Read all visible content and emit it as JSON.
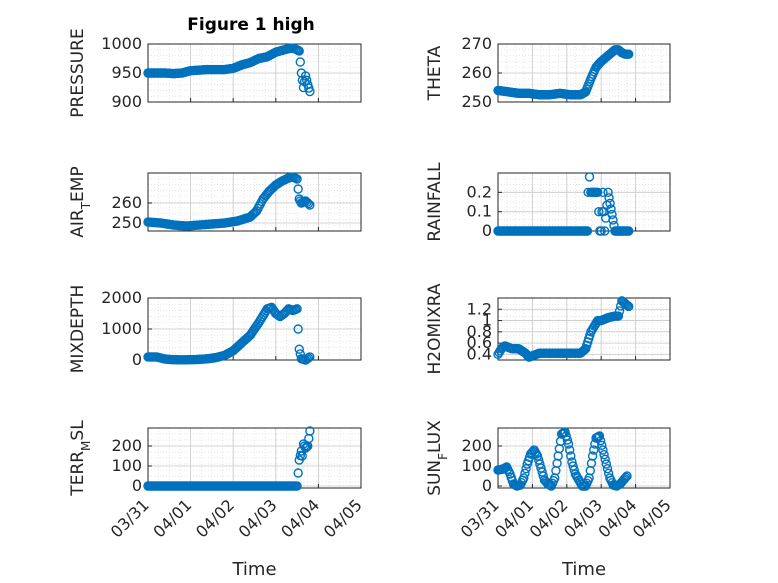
{
  "figure": {
    "title": "Figure 1 high",
    "marker_color": "#0072BD",
    "grid": "on, major and minor dotted"
  },
  "chart_data": [
    {
      "type": "scatter",
      "id": "pressure",
      "title": "Figure 1 high",
      "ylabel": "PRESSURE",
      "xlim": [
        "03/31",
        "04/05"
      ],
      "ylim": [
        900,
        1000
      ],
      "yticks": [
        "900",
        "950",
        "1000"
      ],
      "xticks": [
        "03/31",
        "04/01",
        "04/02",
        "04/03",
        "04/04",
        "04/05"
      ],
      "xlabel": "",
      "x_days": [
        0,
        0.2,
        0.4,
        0.6,
        0.8,
        1.0,
        1.2,
        1.4,
        1.6,
        1.8,
        2.0,
        2.2,
        2.4,
        2.6,
        2.8,
        3.0,
        3.2,
        3.3,
        3.4,
        3.5,
        3.55,
        3.6,
        3.65,
        3.7,
        3.75,
        3.8
      ],
      "y": [
        950,
        950,
        950,
        949,
        950,
        954,
        955,
        956,
        956,
        956,
        958,
        964,
        968,
        975,
        978,
        986,
        990,
        992,
        993,
        990,
        988,
        950,
        925,
        945,
        930,
        918
      ]
    },
    {
      "type": "scatter",
      "id": "theta",
      "ylabel": "THETA",
      "xlim": [
        "03/31",
        "04/05"
      ],
      "ylim": [
        250,
        270
      ],
      "yticks": [
        "250",
        "260",
        "270"
      ],
      "xticks": [
        "03/31",
        "04/01",
        "04/02",
        "04/03",
        "04/04",
        "04/05"
      ],
      "xlabel": "",
      "x_days": [
        0,
        0.3,
        0.6,
        0.9,
        1.2,
        1.5,
        1.8,
        2.1,
        2.4,
        2.55,
        2.7,
        2.85,
        3.0,
        3.15,
        3.3,
        3.4,
        3.5,
        3.6,
        3.7,
        3.8
      ],
      "y": [
        254,
        253.5,
        253,
        253,
        252.5,
        252.5,
        253,
        252.5,
        252.5,
        253.5,
        258,
        262,
        264,
        265.5,
        267,
        268,
        268,
        267,
        266.5,
        266.5
      ]
    },
    {
      "type": "scatter",
      "id": "air_temp",
      "ylabel": "AIR",
      "ylabel_sub": "T",
      "ylabel_tail": "EMP",
      "xlim": [
        "03/31",
        "04/05"
      ],
      "ylim": [
        246,
        275
      ],
      "yticks": [
        "250",
        "260"
      ],
      "xticks": [
        "03/31",
        "04/01",
        "04/02",
        "04/03",
        "04/04",
        "04/05"
      ],
      "xlabel": "",
      "x_days": [
        0,
        0.3,
        0.6,
        0.9,
        1.2,
        1.5,
        1.8,
        2.1,
        2.4,
        2.55,
        2.7,
        2.85,
        3.0,
        3.15,
        3.3,
        3.4,
        3.5,
        3.55,
        3.6,
        3.7,
        3.8
      ],
      "y": [
        250.5,
        250,
        249,
        248.5,
        249,
        249.5,
        250,
        251,
        253,
        256,
        262,
        266,
        269,
        271,
        272.5,
        273,
        272,
        262,
        260,
        261,
        259
      ]
    },
    {
      "type": "scatter",
      "id": "rainfall",
      "ylabel": "RAINFALL",
      "xlim": [
        "03/31",
        "04/05"
      ],
      "ylim": [
        0,
        0.3
      ],
      "yticks": [
        "0",
        "0.1",
        "0.2"
      ],
      "xticks": [
        "03/31",
        "04/01",
        "04/02",
        "04/03",
        "04/04",
        "04/05"
      ],
      "xlabel": "",
      "x_days": [
        0,
        0.4,
        0.8,
        1.2,
        1.6,
        2.0,
        2.4,
        2.6,
        2.62,
        2.66,
        2.7,
        2.8,
        2.9,
        2.96,
        3.0,
        3.05,
        3.1,
        3.2,
        3.4,
        3.6,
        3.8
      ],
      "y": [
        0,
        0,
        0,
        0,
        0,
        0,
        0,
        0,
        0.2,
        0.28,
        0.2,
        0.2,
        0.2,
        0,
        0,
        0.2,
        0,
        0.2,
        0,
        0,
        0
      ]
    },
    {
      "type": "scatter",
      "id": "mixdepth",
      "ylabel": "MIXDEPTH",
      "xlim": [
        "03/31",
        "04/05"
      ],
      "ylim": [
        0,
        2000
      ],
      "yticks": [
        "0",
        "1000",
        "2000"
      ],
      "xticks": [
        "03/31",
        "04/01",
        "04/02",
        "04/03",
        "04/04",
        "04/05"
      ],
      "xlabel": "",
      "x_days": [
        0,
        0.2,
        0.4,
        0.6,
        0.8,
        1.0,
        1.2,
        1.4,
        1.6,
        1.8,
        2.0,
        2.2,
        2.4,
        2.6,
        2.8,
        2.9,
        3.0,
        3.1,
        3.2,
        3.3,
        3.4,
        3.5,
        3.55,
        3.6,
        3.7,
        3.8
      ],
      "y": [
        100,
        100,
        30,
        10,
        5,
        10,
        20,
        40,
        80,
        150,
        300,
        550,
        800,
        1200,
        1650,
        1700,
        1500,
        1400,
        1500,
        1650,
        1600,
        1650,
        350,
        40,
        0,
        100
      ]
    },
    {
      "type": "scatter",
      "id": "h2omixra",
      "ylabel": "H2OMIXRA",
      "xlim": [
        "03/31",
        "04/05"
      ],
      "ylim": [
        0.3,
        1.4
      ],
      "yticks": [
        "0.4",
        "0.6",
        "0.8",
        "1",
        "1.2"
      ],
      "xticks": [
        "03/31",
        "04/01",
        "04/02",
        "04/03",
        "04/04",
        "04/05"
      ],
      "xlabel": "",
      "x_days": [
        0,
        0.1,
        0.2,
        0.4,
        0.6,
        0.8,
        0.9,
        1.2,
        1.6,
        2.0,
        2.4,
        2.55,
        2.7,
        2.8,
        2.9,
        3.0,
        3.2,
        3.4,
        3.5,
        3.6,
        3.7,
        3.8
      ],
      "y": [
        0.4,
        0.5,
        0.55,
        0.5,
        0.5,
        0.42,
        0.35,
        0.42,
        0.42,
        0.42,
        0.42,
        0.5,
        0.8,
        0.9,
        1.0,
        1.0,
        1.05,
        1.08,
        1.08,
        1.35,
        1.3,
        1.25
      ]
    },
    {
      "type": "scatter",
      "id": "terr_msl",
      "ylabel": "TERR",
      "ylabel_sub": "M",
      "ylabel_tail": "SL",
      "xlim": [
        "03/31",
        "04/05"
      ],
      "ylim": [
        -10,
        290
      ],
      "yticks": [
        "0",
        "100",
        "200"
      ],
      "xticks": [
        "03/31",
        "04/01",
        "04/02",
        "04/03",
        "04/04",
        "04/05"
      ],
      "xlabel": "Time",
      "x_days": [
        0,
        0.4,
        0.8,
        1.2,
        1.6,
        2.0,
        2.4,
        2.8,
        3.2,
        3.5,
        3.55,
        3.6,
        3.62,
        3.65,
        3.7,
        3.75,
        3.8
      ],
      "y": [
        0,
        0,
        0,
        0,
        0,
        0,
        0,
        0,
        0,
        0,
        130,
        175,
        150,
        210,
        190,
        200,
        275
      ]
    },
    {
      "type": "scatter",
      "id": "sun_flux",
      "ylabel": "SUN",
      "ylabel_sub": "F",
      "ylabel_tail": "LUX",
      "xlim": [
        "03/31",
        "04/05"
      ],
      "ylim": [
        -10,
        290
      ],
      "yticks": [
        "0",
        "100",
        "200"
      ],
      "xticks": [
        "03/31",
        "04/01",
        "04/02",
        "04/03",
        "04/04",
        "04/05"
      ],
      "xlabel": "Time",
      "x_days": [
        0,
        0.15,
        0.25,
        0.35,
        0.45,
        0.55,
        0.65,
        0.75,
        0.85,
        0.95,
        1.05,
        1.15,
        1.25,
        1.35,
        1.45,
        1.55,
        1.65,
        1.75,
        1.85,
        1.95,
        2.05,
        2.15,
        2.25,
        2.35,
        2.45,
        2.55,
        2.65,
        2.75,
        2.85,
        2.95,
        3.05,
        3.15,
        3.25,
        3.35,
        3.45,
        3.55,
        3.65,
        3.75
      ],
      "y": [
        80,
        85,
        95,
        60,
        10,
        0,
        5,
        40,
        110,
        160,
        180,
        150,
        90,
        30,
        10,
        0,
        40,
        150,
        260,
        270,
        210,
        120,
        60,
        30,
        0,
        0,
        40,
        150,
        240,
        250,
        180,
        110,
        40,
        5,
        0,
        10,
        30,
        50
      ]
    }
  ]
}
